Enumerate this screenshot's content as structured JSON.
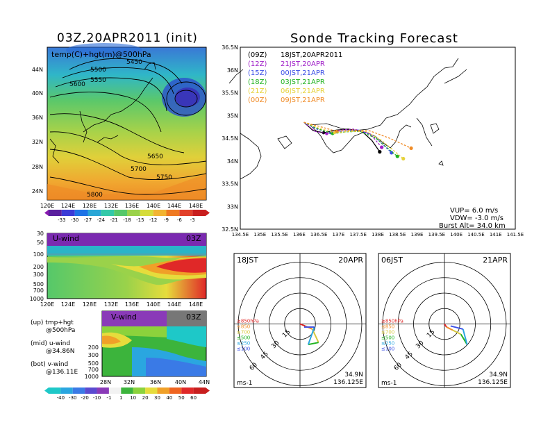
{
  "figure": {
    "left_title": "03Z,20APR2011 (init)",
    "right_title": "Sonde Tracking Forecast"
  },
  "map500": {
    "label": "temp(C)+hgt(m)@500hPa",
    "x_ticks": [
      "120E",
      "124E",
      "128E",
      "132E",
      "136E",
      "140E",
      "144E",
      "148E"
    ],
    "y_ticks": [
      "44N",
      "40N",
      "36N",
      "32N",
      "28N",
      "24N"
    ],
    "contour_labels": [
      "5450",
      "5500",
      "5550",
      "5600",
      "5650",
      "5700",
      "5750",
      "5800"
    ],
    "colorbar_labels": [
      "-33",
      "-30",
      "-27",
      "-24",
      "-21",
      "-18",
      "-15",
      "-12",
      "-9",
      "-6",
      "-3"
    ],
    "colors": [
      "#5a1f9e",
      "#3b3bd6",
      "#1e73e6",
      "#2aa6d6",
      "#33c9a8",
      "#55c86a",
      "#9ad24a",
      "#d6dc3a",
      "#f2b432",
      "#ef7a22",
      "#e2402a"
    ]
  },
  "uwind": {
    "label": "U-wind",
    "time": "03Z",
    "y_ticks": [
      "30",
      "50",
      "100",
      "200",
      "300",
      "500",
      "700",
      "1000"
    ],
    "x_ticks": [
      "120E",
      "124E",
      "128E",
      "132E",
      "136E",
      "140E",
      "144E",
      "148E"
    ]
  },
  "vwind": {
    "label": "V-wind",
    "time": "03Z",
    "y_ticks": [
      "200",
      "300",
      "500",
      "700",
      "1000"
    ],
    "x_ticks": [
      "28N",
      "32N",
      "36N",
      "40N",
      "44N"
    ],
    "colorbar_labels": [
      "-40",
      "-30",
      "-20",
      "-10",
      "-1",
      "1",
      "10",
      "20",
      "30",
      "40",
      "50",
      "60"
    ],
    "colors": [
      "#1ec8c8",
      "#2aa6e0",
      "#3a7ae6",
      "#5a4ad0",
      "#8a3ab8",
      "#f2f2f2",
      "#3cb43c",
      "#8cd23c",
      "#e6dc3c",
      "#f0a028",
      "#ef6420",
      "#e02828"
    ]
  },
  "notes": {
    "up": "(up) tmp+hgt",
    "up2": "@500hPa",
    "mid": "(mid) u-wind",
    "mid2": "@34.86N",
    "bot": "(bot) v-wind",
    "bot2": "@136.11E"
  },
  "track": {
    "x_ticks": [
      "134.5E",
      "135E",
      "135.5E",
      "136E",
      "136.5E",
      "137E",
      "137.5E",
      "138E",
      "138.5E",
      "139E",
      "139.5E",
      "140E",
      "140.5E",
      "141E",
      "141.5E"
    ],
    "y_ticks": [
      "36.5N",
      "36N",
      "35.5N",
      "35N",
      "34.5N",
      "34N",
      "33.5N",
      "33N",
      "32.5N"
    ],
    "legend": [
      {
        "code": "(09Z)",
        "time": "18JST,20APR2011",
        "color": "#000000"
      },
      {
        "code": "(12Z)",
        "time": "21JST,20APR",
        "color": "#a020c8"
      },
      {
        "code": "(15Z)",
        "time": "00JST,21APR",
        "color": "#3c50e6"
      },
      {
        "code": "(18Z)",
        "time": "03JST,21APR",
        "color": "#22b422"
      },
      {
        "code": "(21Z)",
        "time": "06JST,21APR",
        "color": "#e6d23c"
      },
      {
        "code": "(00Z)",
        "time": "09JST,21APR",
        "color": "#f08c28"
      }
    ],
    "params": {
      "vup": "VUP=  6.0  m/s",
      "vdw": "VDW= -3.0  m/s",
      "burst": "Burst Alt= 34.0  km"
    }
  },
  "chart_data": [
    {
      "type": "line",
      "title": "Sonde Tracking Forecast",
      "xlim": [
        134.5,
        141.5
      ],
      "ylim": [
        32.5,
        36.5
      ],
      "series": [
        {
          "name": "(09Z) 18JST,20APR2011",
          "x": [
            136.12,
            136.35,
            136.62,
            136.95,
            137.25,
            137.6,
            137.85,
            138.05
          ],
          "y": [
            34.85,
            34.67,
            34.62,
            34.68,
            34.7,
            34.65,
            34.45,
            34.2
          ]
        },
        {
          "name": "(12Z) 21JST,20APR",
          "x": [
            136.12,
            136.4,
            136.7,
            137.05,
            137.4,
            137.8,
            138.1
          ],
          "y": [
            34.85,
            34.65,
            34.6,
            34.68,
            34.7,
            34.6,
            34.3
          ]
        },
        {
          "name": "(15Z) 00JST,21APR",
          "x": [
            136.12,
            136.45,
            136.8,
            137.15,
            137.5,
            137.9,
            138.35
          ],
          "y": [
            34.85,
            34.7,
            34.62,
            34.66,
            34.68,
            34.55,
            34.18
          ]
        },
        {
          "name": "(18Z) 03JST,21APR",
          "x": [
            136.12,
            136.5,
            136.85,
            137.2,
            137.55,
            137.95,
            138.5
          ],
          "y": [
            34.85,
            34.7,
            34.6,
            34.64,
            34.65,
            34.5,
            34.1
          ]
        },
        {
          "name": "(21Z) 06JST,21APR",
          "x": [
            136.12,
            136.5,
            136.9,
            137.3,
            137.7,
            138.1,
            138.65
          ],
          "y": [
            34.85,
            34.72,
            34.62,
            34.65,
            34.65,
            34.45,
            34.05
          ]
        },
        {
          "name": "(00Z) 09JST,21APR",
          "x": [
            136.12,
            136.55,
            136.95,
            137.35,
            137.8,
            138.3,
            138.85
          ],
          "y": [
            34.85,
            34.75,
            34.65,
            34.68,
            34.66,
            34.5,
            34.28
          ]
        }
      ]
    },
    {
      "type": "hodograph",
      "label_left": "18JST",
      "label_right": "20APR",
      "site": "34.9N",
      "site2": "136.125E",
      "unit": "ms-1",
      "rings": [
        "15",
        "30",
        "45",
        "60"
      ],
      "levels": [
        "≥850hPa",
        "≤850",
        "≤700",
        "≤500",
        "≤250",
        "≤100"
      ],
      "level_colors": [
        "#e02828",
        "#f08c28",
        "#d6c83c",
        "#22b422",
        "#2aa6e0",
        "#3c50e6"
      ],
      "u": [
        0,
        5,
        12,
        18,
        8,
        14,
        4
      ],
      "v": [
        0,
        -2,
        -5,
        -18,
        -20,
        -3,
        -3
      ]
    },
    {
      "type": "hodograph",
      "label_left": "06JST",
      "label_right": "21APR",
      "site": "34.9N",
      "site2": "136.125E",
      "unit": "ms-1",
      "rings": [
        "15",
        "30",
        "45",
        "60"
      ],
      "levels": [
        "≥850hPa",
        "≤850",
        "≤700",
        "≤500",
        "≤250",
        "≤100"
      ],
      "level_colors": [
        "#e02828",
        "#f08c28",
        "#d6c83c",
        "#22b422",
        "#2aa6e0",
        "#3c50e6"
      ],
      "u": [
        0,
        2,
        8,
        16,
        22,
        18,
        6
      ],
      "v": [
        0,
        -3,
        -6,
        -10,
        -20,
        -5,
        -2
      ]
    }
  ]
}
